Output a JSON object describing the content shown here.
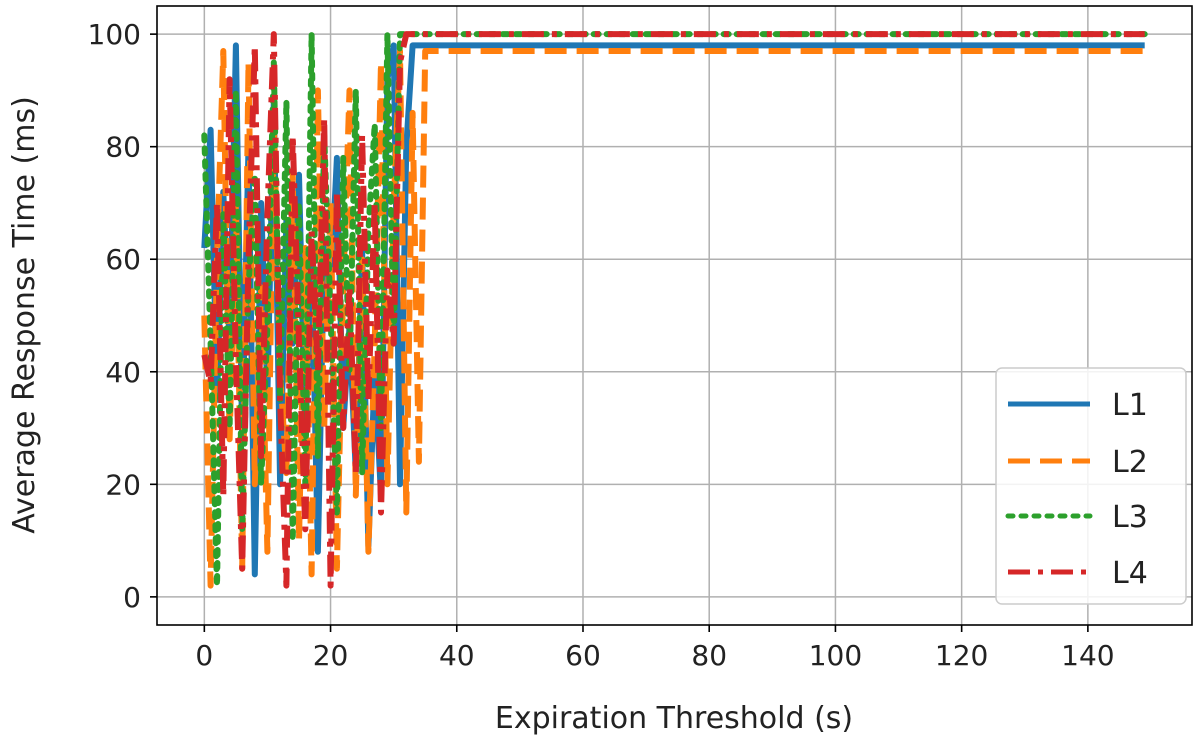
{
  "chart_data": {
    "type": "line",
    "xlabel": "Expiration Threshold (s)",
    "ylabel": "Average Response Time (ms)",
    "xlim": [
      -7.5,
      156.5
    ],
    "ylim": [
      -5,
      105
    ],
    "xticks": [
      0,
      20,
      40,
      60,
      80,
      100,
      120,
      140
    ],
    "yticks": [
      0,
      20,
      40,
      60,
      80,
      100
    ],
    "grid": true,
    "legend_position": "lower-right",
    "series": [
      {
        "name": "L1",
        "color": "#1f77b4",
        "style": "solid",
        "x": [
          0,
          1,
          2,
          3,
          4,
          5,
          6,
          7,
          8,
          9,
          10,
          11,
          12,
          13,
          14,
          15,
          16,
          17,
          18,
          19,
          20,
          21,
          22,
          23,
          24,
          25,
          26,
          27,
          28,
          29,
          30,
          31,
          32,
          33,
          35,
          40,
          60,
          80,
          100,
          120,
          140,
          149
        ],
        "y": [
          62,
          83,
          35,
          72,
          45,
          98,
          28,
          80,
          4,
          70,
          36,
          88,
          20,
          67,
          45,
          75,
          28,
          60,
          8,
          62,
          55,
          78,
          30,
          48,
          22,
          62,
          9,
          40,
          18,
          92,
          98,
          20,
          80,
          98,
          98,
          98,
          98,
          98,
          98,
          98,
          98,
          98
        ]
      },
      {
        "name": "L2",
        "color": "#ff7f0e",
        "style": "dashed",
        "x": [
          0,
          1,
          2,
          3,
          4,
          5,
          6,
          7,
          8,
          9,
          10,
          11,
          12,
          13,
          14,
          15,
          16,
          17,
          18,
          19,
          20,
          21,
          22,
          23,
          24,
          25,
          26,
          27,
          28,
          29,
          30,
          31,
          32,
          33,
          34,
          35,
          40,
          60,
          80,
          100,
          120,
          140,
          149
        ],
        "y": [
          50,
          2,
          60,
          97,
          28,
          70,
          5,
          95,
          20,
          55,
          8,
          85,
          40,
          22,
          75,
          10,
          62,
          4,
          90,
          30,
          70,
          5,
          55,
          90,
          18,
          60,
          8,
          45,
          95,
          20,
          70,
          97,
          15,
          86,
          24,
          97,
          97,
          97,
          97,
          97,
          97,
          97,
          97
        ]
      },
      {
        "name": "L3",
        "color": "#2ca02c",
        "style": "dotted",
        "x": [
          0,
          1,
          2,
          3,
          4,
          5,
          6,
          7,
          8,
          9,
          10,
          11,
          12,
          13,
          14,
          15,
          16,
          17,
          18,
          19,
          20,
          21,
          22,
          23,
          24,
          25,
          26,
          27,
          28,
          29,
          30,
          31,
          32,
          35,
          40,
          60,
          80,
          100,
          120,
          140,
          149
        ],
        "y": [
          82,
          45,
          2,
          68,
          30,
          90,
          12,
          55,
          75,
          20,
          48,
          95,
          35,
          88,
          10,
          70,
          20,
          100,
          25,
          82,
          50,
          15,
          78,
          40,
          90,
          22,
          65,
          84,
          30,
          100,
          45,
          100,
          100,
          100,
          100,
          100,
          100,
          100,
          100,
          100,
          100
        ]
      },
      {
        "name": "L4",
        "color": "#d62728",
        "style": "dashdot",
        "x": [
          0,
          1,
          2,
          3,
          4,
          5,
          6,
          7,
          8,
          9,
          10,
          11,
          12,
          13,
          14,
          15,
          16,
          17,
          18,
          19,
          20,
          21,
          22,
          23,
          24,
          25,
          26,
          27,
          28,
          29,
          30,
          31,
          32,
          35,
          40,
          60,
          80,
          100,
          120,
          140,
          149
        ],
        "y": [
          43,
          38,
          70,
          18,
          92,
          42,
          5,
          60,
          98,
          25,
          68,
          100,
          35,
          2,
          82,
          45,
          12,
          65,
          40,
          85,
          2,
          72,
          30,
          55,
          22,
          82,
          35,
          70,
          15,
          58,
          45,
          95,
          100,
          100,
          100,
          100,
          100,
          100,
          100,
          100,
          100
        ]
      }
    ]
  }
}
